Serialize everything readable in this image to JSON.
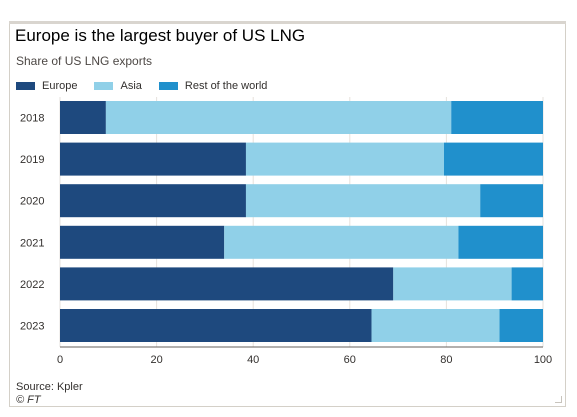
{
  "chart_data": {
    "type": "bar",
    "orientation": "horizontal",
    "stacked": true,
    "title": "Europe is the largest buyer of US LNG",
    "subtitle": "Share of US LNG exports",
    "categories": [
      "2018",
      "2019",
      "2020",
      "2021",
      "2022",
      "2023"
    ],
    "series": [
      {
        "name": "Europe",
        "color": "#1e497e",
        "values": [
          9.5,
          38.5,
          38.5,
          34,
          69,
          64.5
        ]
      },
      {
        "name": "Asia",
        "color": "#90d0e8",
        "values": [
          71.5,
          41,
          48.5,
          48.5,
          24.5,
          26.5
        ]
      },
      {
        "name": "Rest of the world",
        "color": "#2090cc",
        "values": [
          19,
          20.5,
          13,
          17.5,
          6.5,
          9
        ]
      }
    ],
    "xlim": [
      0,
      100
    ],
    "xticks": [
      "0",
      "20",
      "40",
      "60",
      "80",
      "100"
    ],
    "grid": true,
    "legend_position": "top-left",
    "source": "Source: Kpler",
    "credit": "© FT"
  }
}
